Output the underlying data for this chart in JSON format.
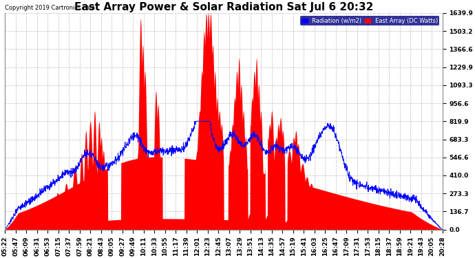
{
  "title": "East Array Power & Solar Radiation Sat Jul 6 20:32",
  "copyright": "Copyright 2019 Cartronics.com",
  "legend_blue": "Radiation (w/m2)",
  "legend_red": "East Array (DC Watts)",
  "yticks": [
    0.0,
    136.7,
    273.3,
    410.0,
    546.6,
    683.3,
    819.9,
    956.6,
    1093.3,
    1229.9,
    1366.6,
    1503.2,
    1639.9
  ],
  "ymax": 1639.9,
  "ymin": 0.0,
  "background": "#ffffff",
  "plot_bg": "#ffffff",
  "grid_color": "#bbbbbb",
  "red_color": "#ff0000",
  "blue_color": "#0000ff",
  "title_fontsize": 11,
  "tick_fontsize": 6.5,
  "xtick_labels": [
    "05:22",
    "05:47",
    "06:09",
    "06:31",
    "06:53",
    "07:15",
    "07:37",
    "07:59",
    "08:21",
    "08:43",
    "09:05",
    "09:27",
    "09:49",
    "10:11",
    "10:33",
    "10:55",
    "11:17",
    "11:39",
    "12:01",
    "12:23",
    "12:45",
    "13:07",
    "13:29",
    "13:51",
    "14:13",
    "14:35",
    "14:57",
    "15:19",
    "15:41",
    "16:03",
    "16:25",
    "16:47",
    "17:09",
    "17:31",
    "17:53",
    "18:15",
    "18:37",
    "18:59",
    "19:21",
    "19:43",
    "20:05",
    "20:28"
  ]
}
